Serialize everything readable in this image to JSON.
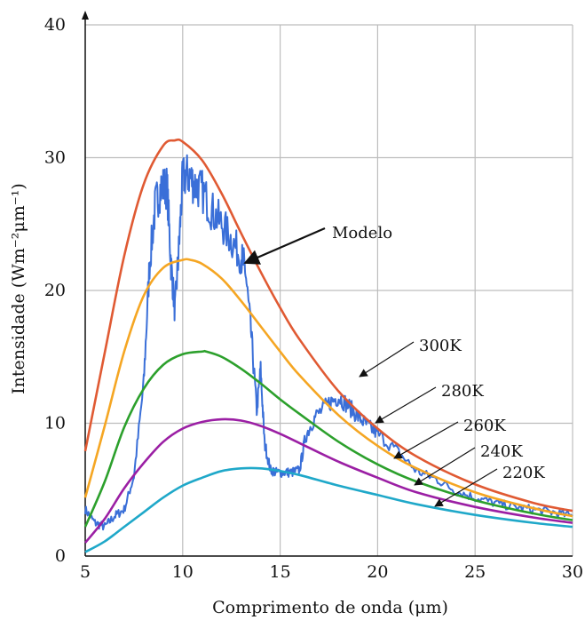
{
  "chart_data": {
    "type": "line",
    "title": "",
    "xlabel": "Comprimento de onda (μm)",
    "ylabel": "Intensidade (Wm⁻²μm⁻¹)",
    "xlim": [
      5,
      30
    ],
    "ylim": [
      0,
      40
    ],
    "xticks": [
      "5",
      "10",
      "15",
      "20",
      "25",
      "30"
    ],
    "yticks": [
      "0",
      "10",
      "20",
      "30",
      "40"
    ],
    "grid": true,
    "series": [
      {
        "name": "300K",
        "color": "#e05a33",
        "temperature_k": 300,
        "x": [
          5,
          6,
          7,
          8,
          9,
          9.6,
          10,
          11,
          12,
          13,
          14,
          15,
          16,
          18,
          20,
          22,
          25,
          28,
          30
        ],
        "y": [
          7.9,
          15.3,
          22.6,
          28.0,
          30.9,
          31.3,
          31.2,
          29.8,
          27.3,
          24.3,
          21.4,
          18.7,
          16.3,
          12.4,
          9.6,
          7.5,
          5.4,
          4.0,
          3.4
        ]
      },
      {
        "name": "280K",
        "color": "#f5a623",
        "temperature_k": 280,
        "x": [
          5,
          6,
          7,
          8,
          9,
          10,
          10.4,
          11,
          12,
          13,
          14,
          15,
          16,
          18,
          20,
          22,
          25,
          28,
          30
        ],
        "y": [
          4.4,
          9.8,
          15.4,
          19.6,
          21.7,
          22.3,
          22.3,
          22.0,
          20.9,
          19.2,
          17.3,
          15.4,
          13.6,
          10.6,
          8.3,
          6.6,
          4.8,
          3.6,
          3.0
        ]
      },
      {
        "name": "260K",
        "color": "#2ca02c",
        "temperature_k": 260,
        "x": [
          5,
          6,
          7,
          8,
          9,
          10,
          11,
          11.2,
          12,
          13,
          14,
          15,
          16,
          18,
          20,
          22,
          25,
          28,
          30
        ],
        "y": [
          2.2,
          5.6,
          9.7,
          12.6,
          14.4,
          15.2,
          15.4,
          15.4,
          15.0,
          14.1,
          13.0,
          11.8,
          10.7,
          8.6,
          6.9,
          5.6,
          4.2,
          3.2,
          2.7
        ]
      },
      {
        "name": "240K",
        "color": "#9b1fa4",
        "temperature_k": 240,
        "x": [
          5,
          6,
          7,
          8,
          9,
          10,
          11,
          12,
          13,
          14,
          15,
          16,
          18,
          20,
          22,
          25,
          28,
          30
        ],
        "y": [
          1.0,
          2.8,
          5.1,
          7.0,
          8.6,
          9.6,
          10.1,
          10.3,
          10.2,
          9.8,
          9.2,
          8.5,
          7.1,
          5.9,
          4.8,
          3.7,
          2.9,
          2.5
        ]
      },
      {
        "name": "220K",
        "color": "#1fa8c9",
        "temperature_k": 220,
        "x": [
          5,
          6,
          7,
          8,
          9,
          10,
          11,
          12,
          13,
          14,
          15,
          16,
          18,
          20,
          22,
          25,
          28,
          30
        ],
        "y": [
          0.3,
          1.1,
          2.2,
          3.3,
          4.4,
          5.3,
          5.9,
          6.4,
          6.6,
          6.6,
          6.4,
          6.1,
          5.3,
          4.6,
          3.9,
          3.1,
          2.5,
          2.2
        ]
      },
      {
        "name": "Modelo",
        "color": "#3a6fd8",
        "noisy": true,
        "x": [
          5,
          5.5,
          6,
          6.5,
          7,
          7.5,
          8,
          8.3,
          8.6,
          8.9,
          9.2,
          9.4,
          9.6,
          9.8,
          10,
          10.3,
          10.6,
          11,
          11.5,
          12,
          12.5,
          13,
          13.2,
          13.5,
          13.8,
          14,
          14.2,
          14.5,
          14.8,
          15.2,
          15.6,
          16,
          16.3,
          16.8,
          17.5,
          18,
          18.5,
          19,
          19.5,
          20,
          21,
          22,
          23,
          24,
          25,
          26,
          27,
          28,
          29,
          30
        ],
        "y": [
          3.5,
          2.5,
          2.2,
          3.0,
          3.5,
          6.0,
          13.0,
          22.0,
          26.5,
          27.8,
          27.8,
          22.0,
          18.5,
          23.0,
          28.5,
          28.7,
          28.0,
          27.5,
          26.0,
          25.0,
          23.8,
          22.5,
          21.7,
          17.0,
          11.0,
          14.0,
          8.5,
          6.5,
          6.3,
          6.3,
          6.3,
          6.5,
          9.0,
          10.5,
          11.5,
          12.0,
          11.3,
          10.5,
          9.8,
          9.2,
          7.9,
          6.4,
          5.8,
          4.9,
          4.4,
          4.0,
          3.7,
          3.5,
          3.3,
          3.0
        ]
      }
    ],
    "annotations": [
      {
        "label": "Modelo",
        "target_series": "Modelo"
      },
      {
        "label": "300K",
        "target_series": "300K"
      },
      {
        "label": "280K",
        "target_series": "280K"
      },
      {
        "label": "260K",
        "target_series": "260K"
      },
      {
        "label": "240K",
        "target_series": "240K"
      },
      {
        "label": "220K",
        "target_series": "220K"
      }
    ]
  }
}
